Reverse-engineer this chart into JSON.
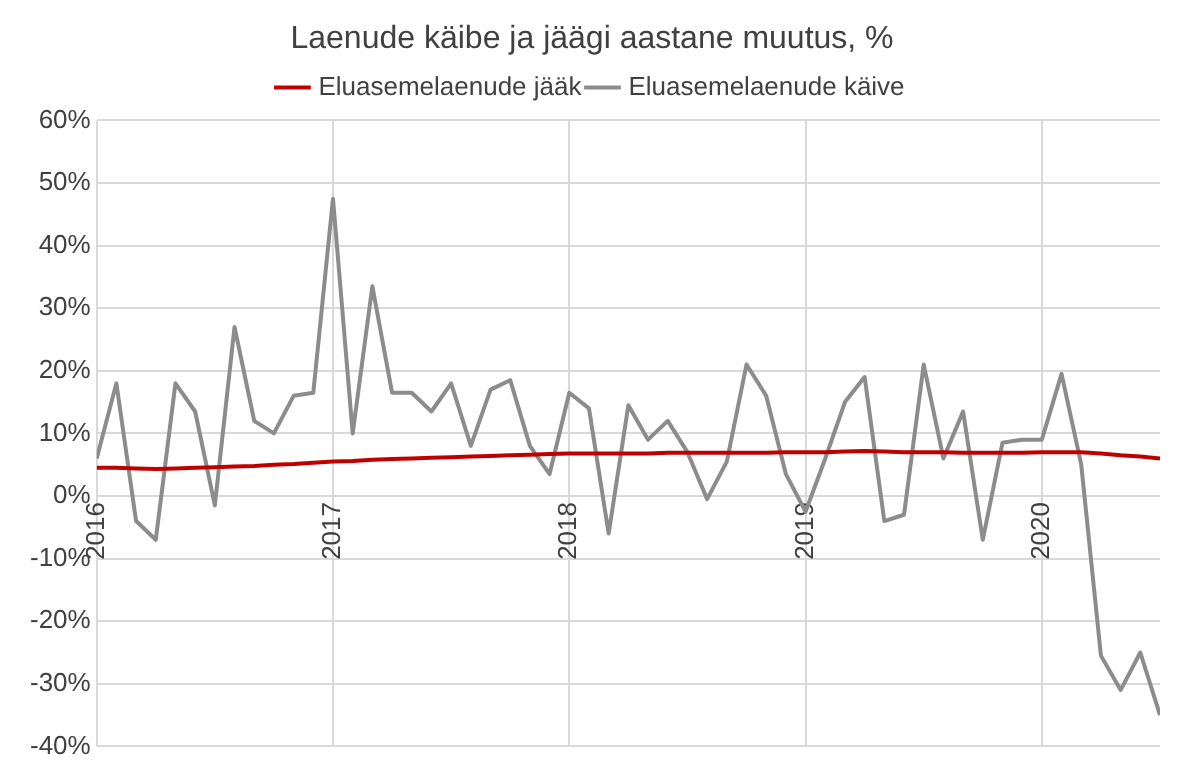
{
  "chart_data": {
    "type": "line",
    "title": "Laenude käibe ja jäägi aastane muutus, %",
    "x": [
      "2016-01",
      "2016-02",
      "2016-03",
      "2016-04",
      "2016-05",
      "2016-06",
      "2016-07",
      "2016-08",
      "2016-09",
      "2016-10",
      "2016-11",
      "2016-12",
      "2017-01",
      "2017-02",
      "2017-03",
      "2017-04",
      "2017-05",
      "2017-06",
      "2017-07",
      "2017-08",
      "2017-09",
      "2017-10",
      "2017-11",
      "2017-12",
      "2018-01",
      "2018-02",
      "2018-03",
      "2018-04",
      "2018-05",
      "2018-06",
      "2018-07",
      "2018-08",
      "2018-09",
      "2018-10",
      "2018-11",
      "2018-12",
      "2019-01",
      "2019-02",
      "2019-03",
      "2019-04",
      "2019-05",
      "2019-06",
      "2019-07",
      "2019-08",
      "2019-09",
      "2019-10",
      "2019-11",
      "2019-12",
      "2020-01",
      "2020-02",
      "2020-03",
      "2020-04",
      "2020-05",
      "2020-06",
      "2020-07"
    ],
    "series": [
      {
        "name": "Eluasemelaenude jääk",
        "color": "#c00000",
        "values": [
          4.5,
          4.5,
          4.4,
          4.3,
          4.4,
          4.5,
          4.6,
          4.7,
          4.8,
          5.0,
          5.1,
          5.3,
          5.5,
          5.6,
          5.8,
          5.9,
          6.0,
          6.1,
          6.2,
          6.3,
          6.4,
          6.5,
          6.6,
          6.7,
          6.8,
          6.8,
          6.8,
          6.8,
          6.8,
          6.9,
          6.9,
          6.9,
          6.9,
          6.9,
          6.9,
          7.0,
          7.0,
          7.0,
          7.1,
          7.2,
          7.1,
          7.0,
          7.0,
          7.0,
          6.9,
          6.9,
          6.9,
          6.9,
          7.0,
          7.0,
          7.0,
          6.8,
          6.5,
          6.3,
          6.0
        ]
      },
      {
        "name": "Eluasemelaenude käive",
        "color": "#8c8c8c",
        "values": [
          6,
          18,
          -4,
          -7,
          18,
          13.5,
          -1.5,
          27,
          12,
          10,
          16,
          16.5,
          47.5,
          10,
          33.5,
          16.5,
          16.5,
          13.5,
          18,
          8,
          17,
          18.5,
          8,
          3.5,
          16.5,
          14,
          -6,
          14.5,
          9,
          12,
          7,
          -0.5,
          5.5,
          21,
          16,
          3.5,
          -2.5,
          6,
          15,
          19,
          -4,
          -3,
          21,
          6,
          13.5,
          -7,
          8.5,
          9,
          9,
          19.5,
          5,
          -25.5,
          -31,
          -25,
          -35
        ]
      }
    ],
    "xlim": [
      "2016-01",
      "2020-07"
    ],
    "xticks": [
      {
        "value": "2016",
        "label": "2016"
      },
      {
        "value": "2017",
        "label": "2017"
      },
      {
        "value": "2018",
        "label": "2018"
      },
      {
        "value": "2019",
        "label": "2019"
      },
      {
        "value": "2020",
        "label": "2020"
      }
    ],
    "ylim": [
      -40,
      60
    ],
    "yticks": [
      {
        "value": -40,
        "label": "-40%"
      },
      {
        "value": -30,
        "label": "-30%"
      },
      {
        "value": -20,
        "label": "-20%"
      },
      {
        "value": -10,
        "label": "-10%"
      },
      {
        "value": 0,
        "label": "0%"
      },
      {
        "value": 10,
        "label": "10%"
      },
      {
        "value": 20,
        "label": "20%"
      },
      {
        "value": 30,
        "label": "30%"
      },
      {
        "value": 40,
        "label": "40%"
      },
      {
        "value": 50,
        "label": "50%"
      },
      {
        "value": 60,
        "label": "60%"
      }
    ],
    "grid": true,
    "legend": "top",
    "marker": "none",
    "line_style": "solid"
  }
}
